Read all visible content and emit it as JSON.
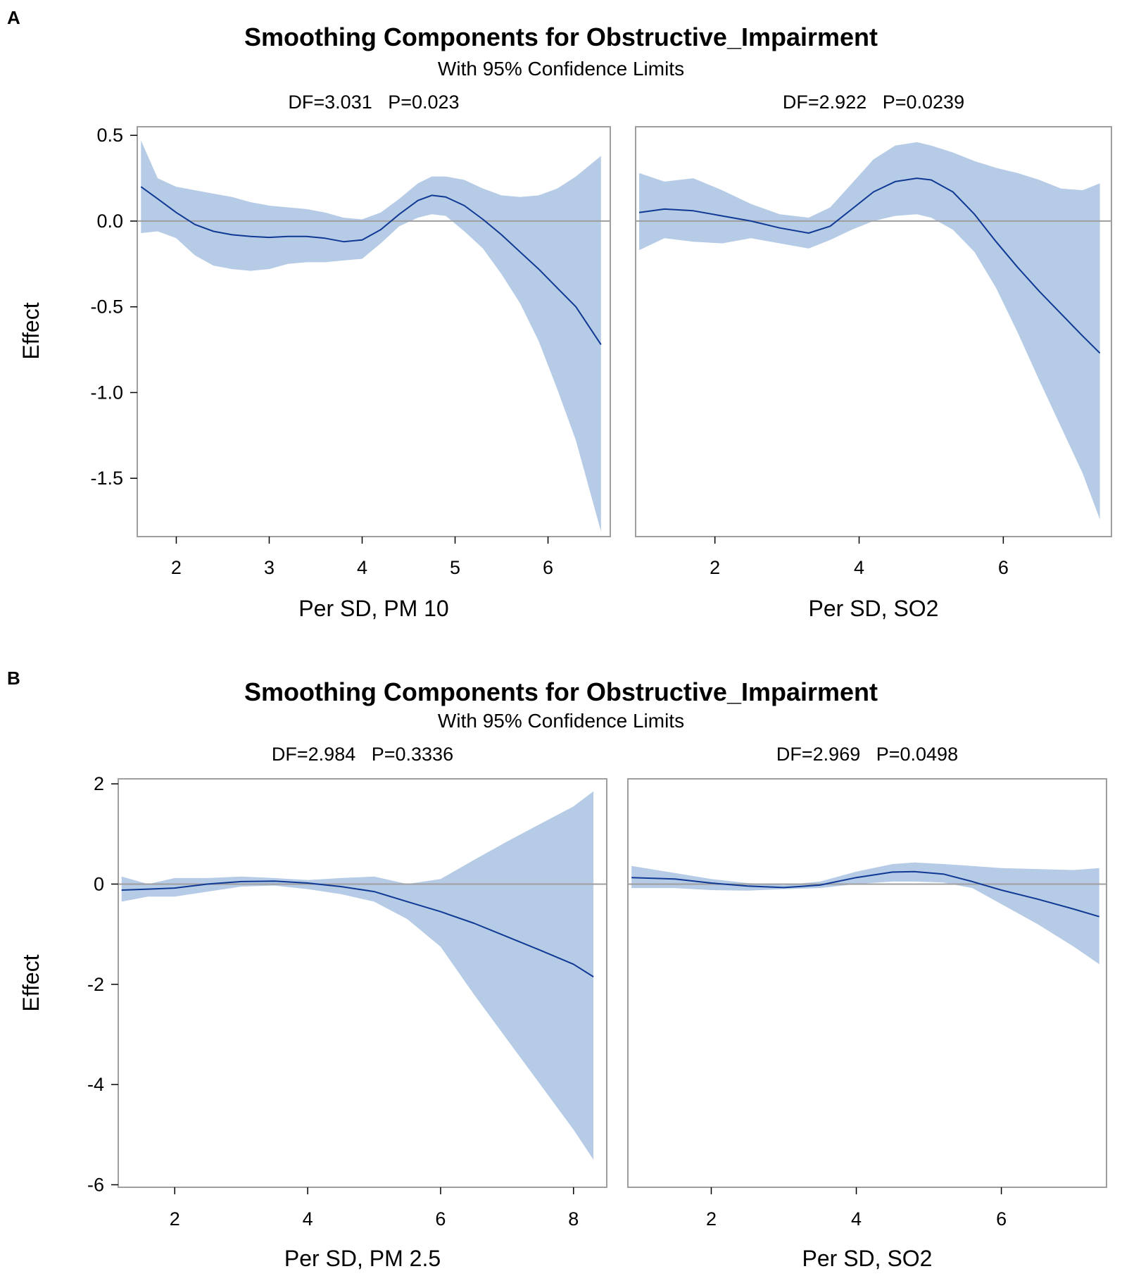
{
  "panels": {
    "a": {
      "letter": "A",
      "title": "Smoothing Components for Obstructive_Impairment",
      "subtitle": "With 95% Confidence Limits"
    },
    "b": {
      "letter": "B",
      "title": "Smoothing Components for Obstructive_Impairment",
      "subtitle": "With 95% Confidence Limits"
    }
  },
  "colors": {
    "band": "#b6cbe6",
    "line": "#0f3994",
    "frame": "#9e9e9e",
    "refline": "#9e9e9e"
  },
  "chart_data": [
    {
      "type": "area",
      "panel": "A",
      "stats": "DF=3.031   P=0.023",
      "xlabel": "Per SD, PM 10",
      "ylabel": "Effect",
      "xlim": [
        1.58,
        6.67
      ],
      "ylim": [
        -1.84,
        0.55
      ],
      "xticks": [
        2,
        3,
        4,
        5,
        6
      ],
      "yticks": [
        0.5,
        0.0,
        -0.5,
        -1.0,
        -1.5
      ],
      "yticklabels": [
        "0.5",
        "0.0",
        "-0.5",
        "-1.0",
        "-1.5"
      ],
      "reference_y": 0,
      "x": [
        1.62,
        1.8,
        2.0,
        2.2,
        2.4,
        2.6,
        2.8,
        3.0,
        3.2,
        3.4,
        3.6,
        3.8,
        4.0,
        4.2,
        4.4,
        4.6,
        4.75,
        4.9,
        5.1,
        5.3,
        5.5,
        5.7,
        5.9,
        6.1,
        6.3,
        6.57
      ],
      "y": [
        0.2,
        0.13,
        0.05,
        -0.02,
        -0.06,
        -0.08,
        -0.09,
        -0.095,
        -0.09,
        -0.09,
        -0.1,
        -0.12,
        -0.11,
        -0.05,
        0.04,
        0.12,
        0.15,
        0.14,
        0.09,
        0.01,
        -0.08,
        -0.18,
        -0.28,
        -0.39,
        -0.5,
        -0.72
      ],
      "lower": [
        -0.07,
        -0.06,
        -0.1,
        -0.2,
        -0.26,
        -0.28,
        -0.29,
        -0.28,
        -0.25,
        -0.24,
        -0.24,
        -0.23,
        -0.22,
        -0.13,
        -0.03,
        0.02,
        0.04,
        0.03,
        -0.06,
        -0.16,
        -0.31,
        -0.48,
        -0.7,
        -0.98,
        -1.28,
        -1.81
      ],
      "upper": [
        0.47,
        0.25,
        0.2,
        0.18,
        0.16,
        0.14,
        0.11,
        0.09,
        0.08,
        0.07,
        0.05,
        0.02,
        0.01,
        0.05,
        0.13,
        0.22,
        0.26,
        0.26,
        0.24,
        0.19,
        0.15,
        0.14,
        0.15,
        0.19,
        0.26,
        0.38
      ]
    },
    {
      "type": "area",
      "panel": "A",
      "stats": "DF=2.922   P=0.0239",
      "xlabel": "Per SD, SO2",
      "ylabel": "",
      "xlim": [
        0.9,
        7.5
      ],
      "ylim": [
        -1.84,
        0.55
      ],
      "xticks": [
        2,
        4,
        6
      ],
      "yticks": [],
      "yticklabels": [],
      "reference_y": 0,
      "x": [
        0.95,
        1.3,
        1.7,
        2.1,
        2.5,
        2.9,
        3.3,
        3.6,
        3.9,
        4.2,
        4.5,
        4.8,
        5.0,
        5.3,
        5.6,
        5.9,
        6.2,
        6.5,
        6.8,
        7.1,
        7.34
      ],
      "y": [
        0.05,
        0.07,
        0.06,
        0.03,
        0.0,
        -0.04,
        -0.07,
        -0.03,
        0.07,
        0.17,
        0.23,
        0.25,
        0.24,
        0.17,
        0.04,
        -0.12,
        -0.27,
        -0.41,
        -0.54,
        -0.67,
        -0.77
      ],
      "lower": [
        -0.17,
        -0.1,
        -0.12,
        -0.13,
        -0.1,
        -0.13,
        -0.16,
        -0.11,
        -0.05,
        0.0,
        0.03,
        0.04,
        0.02,
        -0.05,
        -0.18,
        -0.39,
        -0.65,
        -0.93,
        -1.2,
        -1.47,
        -1.74
      ],
      "upper": [
        0.28,
        0.23,
        0.25,
        0.18,
        0.1,
        0.04,
        0.02,
        0.08,
        0.22,
        0.36,
        0.44,
        0.46,
        0.44,
        0.4,
        0.35,
        0.31,
        0.28,
        0.24,
        0.19,
        0.18,
        0.22
      ]
    },
    {
      "type": "area",
      "panel": "B",
      "stats": "DF=2.984   P=0.3336",
      "xlabel": "Per SD, PM 2.5",
      "ylabel": "Effect",
      "xlim": [
        1.15,
        8.5
      ],
      "ylim": [
        -6.05,
        2.1
      ],
      "xticks": [
        2,
        4,
        6,
        8
      ],
      "yticks": [
        2,
        0,
        -2,
        -4,
        -6
      ],
      "yticklabels": [
        "2",
        "0",
        "-2",
        "-4",
        "-6"
      ],
      "reference_y": 0,
      "x": [
        1.2,
        1.6,
        2.0,
        2.5,
        3.0,
        3.5,
        4.0,
        4.5,
        5.0,
        5.5,
        6.0,
        6.5,
        7.0,
        7.5,
        8.0,
        8.3
      ],
      "y": [
        -0.12,
        -0.1,
        -0.08,
        0.0,
        0.05,
        0.06,
        0.02,
        -0.05,
        -0.15,
        -0.35,
        -0.55,
        -0.78,
        -1.05,
        -1.32,
        -1.6,
        -1.85
      ],
      "lower": [
        -0.35,
        -0.25,
        -0.25,
        -0.15,
        -0.05,
        -0.03,
        -0.1,
        -0.2,
        -0.35,
        -0.7,
        -1.25,
        -2.2,
        -3.1,
        -4.0,
        -4.9,
        -5.5
      ],
      "upper": [
        0.15,
        0.0,
        0.12,
        0.12,
        0.15,
        0.12,
        0.08,
        0.12,
        0.15,
        0.0,
        0.1,
        0.48,
        0.85,
        1.2,
        1.55,
        1.85
      ]
    },
    {
      "type": "area",
      "panel": "B",
      "stats": "DF=2.969   P=0.0498",
      "xlabel": "Per SD, SO2",
      "ylabel": "",
      "xlim": [
        0.85,
        7.45
      ],
      "ylim": [
        -6.05,
        2.1
      ],
      "xticks": [
        2,
        4,
        6
      ],
      "yticks": [],
      "yticklabels": [],
      "reference_y": 0,
      "x": [
        0.9,
        1.5,
        2.0,
        2.5,
        3.0,
        3.5,
        4.0,
        4.5,
        4.8,
        5.2,
        5.6,
        6.0,
        6.5,
        7.0,
        7.35
      ],
      "y": [
        0.13,
        0.1,
        0.02,
        -0.04,
        -0.07,
        -0.02,
        0.13,
        0.24,
        0.25,
        0.2,
        0.05,
        -0.12,
        -0.3,
        -0.5,
        -0.65
      ],
      "lower": [
        -0.08,
        -0.08,
        -0.12,
        -0.13,
        -0.1,
        -0.08,
        0.0,
        0.05,
        0.05,
        0.03,
        -0.08,
        -0.4,
        -0.8,
        -1.25,
        -1.6
      ],
      "upper": [
        0.36,
        0.22,
        0.1,
        0.02,
        -0.02,
        0.05,
        0.25,
        0.4,
        0.43,
        0.4,
        0.36,
        0.32,
        0.3,
        0.28,
        0.32
      ]
    }
  ]
}
